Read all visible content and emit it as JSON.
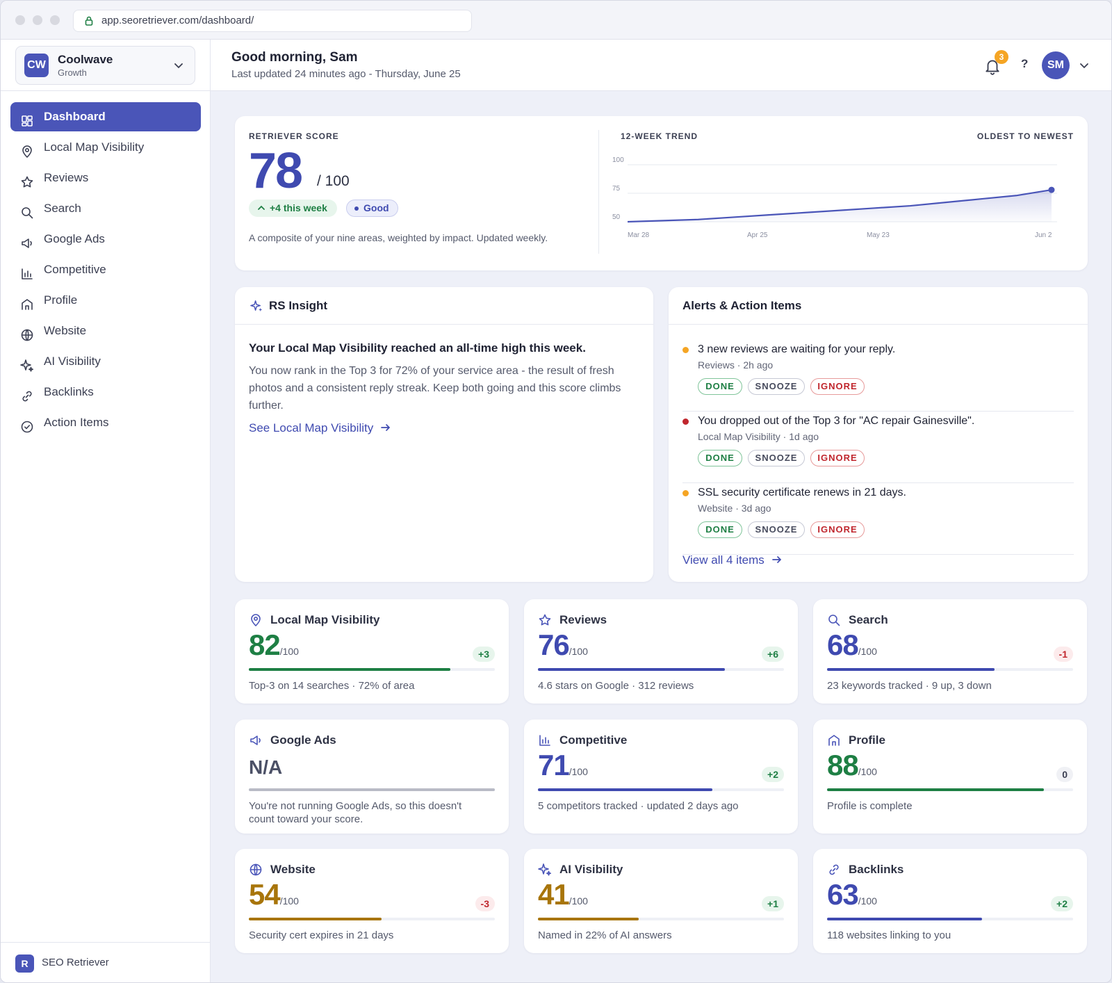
{
  "browser": {
    "url": "app.seoretriever.com/dashboard/"
  },
  "org": {
    "initials": "CW",
    "name": "Coolwave",
    "plan": "Growth"
  },
  "nav": [
    {
      "label": "Dashboard",
      "icon": "dashboard-icon",
      "active": true
    },
    {
      "label": "Local Map Visibility",
      "icon": "map-pin-icon"
    },
    {
      "label": "Reviews",
      "icon": "star-icon"
    },
    {
      "label": "Search",
      "icon": "search-icon"
    },
    {
      "label": "Google Ads",
      "icon": "megaphone-icon"
    },
    {
      "label": "Competitive",
      "icon": "bar-chart-icon"
    },
    {
      "label": "Profile",
      "icon": "storefront-icon"
    },
    {
      "label": "Website",
      "icon": "globe-icon"
    },
    {
      "label": "AI Visibility",
      "icon": "sparkle-icon"
    },
    {
      "label": "Backlinks",
      "icon": "link-icon"
    },
    {
      "label": "Action Items",
      "icon": "check-circle-icon"
    }
  ],
  "footer": {
    "logo": "R",
    "name": "SEO Retriever"
  },
  "header": {
    "greeting": "Good morning, Sam",
    "updated": "Last updated 24 minutes ago - Thursday, June 25",
    "notifications": "3",
    "help": "?",
    "avatar": "SM"
  },
  "score": {
    "label": "RETRIEVER SCORE",
    "value": "78",
    "out_of": "/ 100",
    "change": "+4 this week",
    "status": "Good",
    "description": "A composite of your nine areas, weighted by impact. Updated weekly.",
    "trend_label": "12-WEEK TREND",
    "trend_order": "OLDEST TO NEWEST"
  },
  "chart_data": {
    "type": "area",
    "x": [
      "Mar 28",
      "Apr 4",
      "Apr 11",
      "Apr 18",
      "Apr 25",
      "May 2",
      "May 9",
      "May 16",
      "May 23",
      "May 30",
      "Jun 6",
      "Jun 13",
      "Jun 25"
    ],
    "values": [
      50,
      51,
      52,
      54,
      56,
      58,
      60,
      62,
      64,
      67,
      70,
      73,
      78
    ],
    "ylim": [
      50,
      100
    ],
    "yticks": [
      "100",
      "75",
      "50"
    ],
    "xtick_labels": [
      "Mar 28",
      "Apr 25",
      "May 23",
      "Jun 2"
    ],
    "color": "#4a55b8"
  },
  "insight": {
    "title": "RS Insight",
    "headline": "Your Local Map Visibility reached an all-time high this week.",
    "body": "You now rank in the Top 3 for 72% of your service area - the result of fresh photos and a consistent reply streak. Keep both going and this score climbs further.",
    "link": "See Local Map Visibility"
  },
  "alerts": {
    "title": "Alerts & Action Items",
    "items": [
      {
        "text": "3 new reviews are waiting for your reply.",
        "meta": "Reviews · 2h ago",
        "color": "#f5a524"
      },
      {
        "text": "You dropped out of the Top 3 for \"AC repair Gainesville\".",
        "meta": "Local Map Visibility · 1d ago",
        "color": "#c0262d"
      },
      {
        "text": "SSL security certificate renews in 21 days.",
        "meta": "Website · 3d ago",
        "color": "#f5a524"
      }
    ],
    "buttons": {
      "done": "DONE",
      "snooze": "SNOOZE",
      "ignore": "IGNORE"
    },
    "view_all": "View all 4 items"
  },
  "metrics": [
    {
      "title": "Local Map Visibility",
      "icon": "map-pin-icon",
      "value": "82",
      "suffix": "/100",
      "change": "+3",
      "progress": 0.82,
      "color": "#1e7f44",
      "desc": "Top-3 on 14 searches · 72% of area"
    },
    {
      "title": "Reviews",
      "icon": "star-icon",
      "value": "76",
      "suffix": "/100",
      "change": "+6",
      "progress": 0.76,
      "color": "#3f4ab0",
      "desc": "4.6 stars on Google · 312 reviews"
    },
    {
      "title": "Search",
      "icon": "search-icon",
      "value": "68",
      "suffix": "/100",
      "change": "-1",
      "progress": 0.68,
      "color": "#3f4ab0",
      "desc": "23 keywords tracked · 9 up, 3 down"
    },
    {
      "title": "Google Ads",
      "icon": "megaphone-icon",
      "value": "N/A",
      "suffix": "",
      "change": "",
      "progress": 1.0,
      "color": "#4b5066",
      "desc": "You're not running Google Ads, so this doesn't count toward your score."
    },
    {
      "title": "Competitive",
      "icon": "bar-chart-icon",
      "value": "71",
      "suffix": "/100",
      "change": "+2",
      "progress": 0.71,
      "color": "#3f4ab0",
      "desc": "5 competitors tracked · updated 2 days ago"
    },
    {
      "title": "Profile",
      "icon": "storefront-icon",
      "value": "88",
      "suffix": "/100",
      "change": "0",
      "progress": 0.88,
      "color": "#1e7f44",
      "desc": "Profile is complete"
    },
    {
      "title": "Website",
      "icon": "globe-icon",
      "value": "54",
      "suffix": "/100",
      "change": "-3",
      "progress": 0.54,
      "color": "#a8750a",
      "desc": "Security cert expires in 21 days"
    },
    {
      "title": "AI Visibility",
      "icon": "sparkle-icon",
      "value": "41",
      "suffix": "/100",
      "change": "+1",
      "progress": 0.41,
      "color": "#a8750a",
      "desc": "Named in 22% of AI answers"
    },
    {
      "title": "Backlinks",
      "icon": "link-icon",
      "value": "63",
      "suffix": "/100",
      "change": "+2",
      "progress": 0.63,
      "color": "#3f4ab0",
      "desc": "118 websites linking to you"
    }
  ]
}
